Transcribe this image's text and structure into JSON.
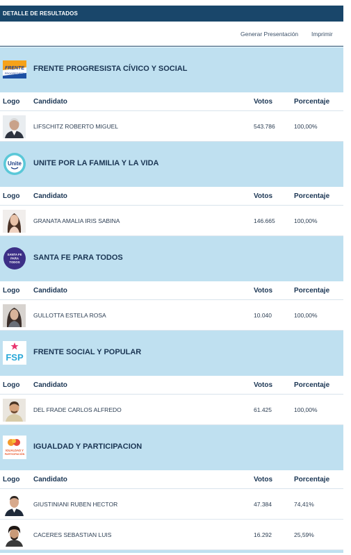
{
  "header": {
    "title": "DETALLE DE RESULTADOS"
  },
  "actions": {
    "generate": "Generar Presentación",
    "print": "Imprimir"
  },
  "columns": {
    "logo": "Logo",
    "candidate": "Candidato",
    "votes": "Votos",
    "percent": "Porcentaje"
  },
  "parties": [
    {
      "name": "FRENTE PROGRESISTA CÍVICO Y SOCIAL",
      "logo_text": "FRENTE PROGRESISTA",
      "candidates": [
        {
          "name": "LIFSCHITZ ROBERTO MIGUEL",
          "votes": "543.786",
          "percent": "100,00%"
        }
      ]
    },
    {
      "name": "UNITE POR LA FAMILIA Y LA VIDA",
      "logo_text": "Unite",
      "candidates": [
        {
          "name": "GRANATA AMALIA IRIS SABINA",
          "votes": "146.665",
          "percent": "100,00%"
        }
      ]
    },
    {
      "name": "SANTA FE PARA TODOS",
      "logo_text": "SANTA FE PARA TODOS",
      "candidates": [
        {
          "name": "GULLOTTA ESTELA ROSA",
          "votes": "10.040",
          "percent": "100,00%"
        }
      ]
    },
    {
      "name": "FRENTE SOCIAL Y POPULAR",
      "logo_text": "FSP",
      "candidates": [
        {
          "name": "DEL FRADE CARLOS ALFREDO",
          "votes": "61.425",
          "percent": "100,00%"
        }
      ]
    },
    {
      "name": "IGUALDAD Y PARTICIPACION",
      "logo_text": "IGUALDAD Y PARTICIPACIÓN",
      "candidates": [
        {
          "name": "GIUSTINIANI RUBEN HECTOR",
          "votes": "47.384",
          "percent": "74,41%"
        },
        {
          "name": "CACERES SEBASTIAN LUIS",
          "votes": "16.292",
          "percent": "25,59%"
        }
      ]
    }
  ],
  "colors": {
    "header_bg": "#19466a",
    "party_bg": "#bfe0f0"
  }
}
